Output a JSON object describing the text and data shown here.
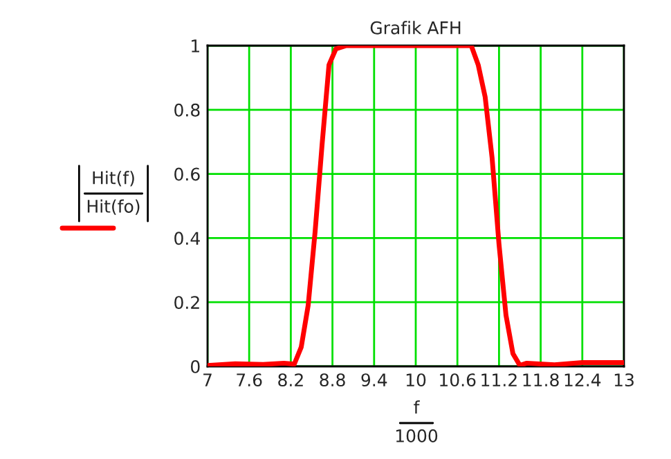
{
  "chart_data": {
    "type": "line",
    "title": "Grafik AFH",
    "xlabel": "f\n1000",
    "ylabel": "Hit(f)\nHit(fo)",
    "x": [
      7,
      7.4,
      7.8,
      8.1,
      8.25,
      8.35,
      8.45,
      8.55,
      8.65,
      8.75,
      8.85,
      9,
      10.5,
      10.8,
      10.9,
      11.0,
      11.1,
      11.2,
      11.3,
      11.4,
      11.5,
      11.6,
      12,
      12.4,
      13
    ],
    "series": [
      {
        "color": "#ff0000",
        "values": [
          0.003,
          0.008,
          0.006,
          0.01,
          0.007,
          0.06,
          0.19,
          0.42,
          0.69,
          0.94,
          0.99,
          1.0,
          1.0,
          1.0,
          0.94,
          0.84,
          0.65,
          0.38,
          0.16,
          0.04,
          0.003,
          0.01,
          0.005,
          0.012,
          0.012
        ]
      }
    ],
    "xlim": [
      7,
      13
    ],
    "xticks": [
      7,
      7.6,
      8.2,
      8.8,
      9.4,
      10,
      10.6,
      11.2,
      11.8,
      12.4,
      13
    ],
    "ylim": [
      0,
      1
    ],
    "yticks": [
      0,
      0.2,
      0.4,
      0.6,
      0.8,
      1
    ],
    "grid": true,
    "line_style": "solid",
    "marker": "none",
    "legend": false
  }
}
